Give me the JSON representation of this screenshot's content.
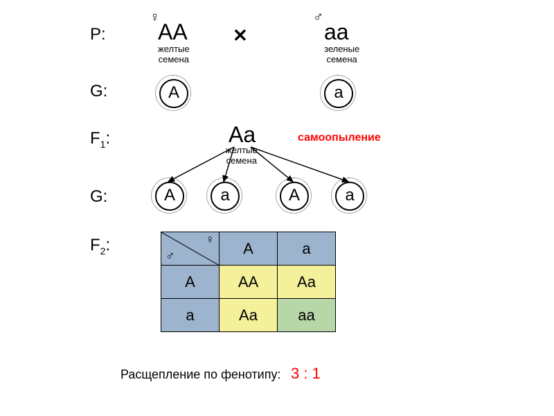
{
  "labels": {
    "P": "P:",
    "G1": "G:",
    "F1": "F<sub>1</sub>:",
    "G2": "G:",
    "F2": "F<sub>2</sub>:"
  },
  "parents": {
    "female_sym": "♀",
    "male_sym": "♂",
    "cross": "✕",
    "mother_geno": "AA",
    "mother_pheno": "желтые\nсемена",
    "father_geno": "aa",
    "father_pheno": "зеленые\nсемена"
  },
  "gametes_p": {
    "left": "A",
    "right": "a"
  },
  "f1": {
    "geno": "Aa",
    "pheno": "желтые\nсемена",
    "self_pollination": "самоопыление",
    "self_color": "#ff0000"
  },
  "gametes_f1": [
    "A",
    "a",
    "A",
    "a"
  ],
  "punnett": {
    "female_sym": "♀",
    "male_sym": "♂",
    "col_headers": [
      "A",
      "a"
    ],
    "row_headers": [
      "A",
      "a"
    ],
    "cells": [
      [
        "AA",
        "Aa"
      ],
      [
        "Aa",
        "aa"
      ]
    ],
    "colors": {
      "header_bg": "#9db4cf",
      "AA_bg": "#f5f19a",
      "Aa_bg": "#f5f19a",
      "aa_bg": "#b7d7a8",
      "border": "#000000"
    }
  },
  "ratio": {
    "label": "Расщепление по фенотипу:",
    "value": "3 : 1",
    "value_color": "#ff0000"
  },
  "gamete_positions_f1_x": [
    224,
    304,
    404,
    484
  ]
}
